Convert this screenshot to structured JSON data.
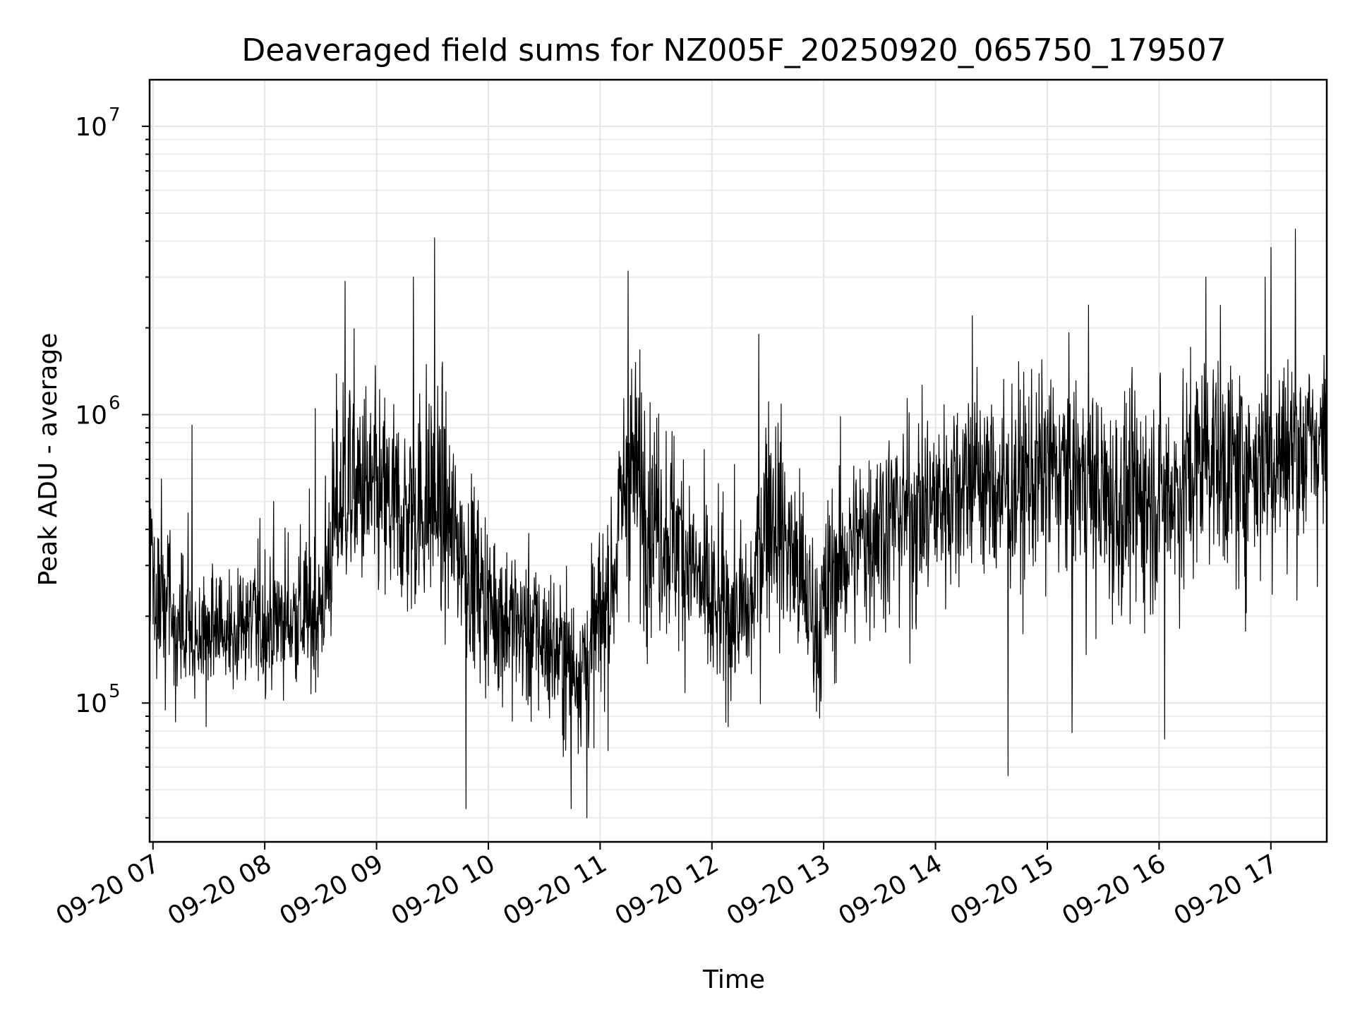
{
  "chart_data": {
    "type": "line",
    "title": "Deaveraged field sums for NZ005F_20250920_065750_179507",
    "xlabel": "Time",
    "ylabel": "Peak ADU - average",
    "yscale": "log",
    "ylim": [
      33000,
      14500000
    ],
    "xlim_hours": [
      6.97,
      17.5
    ],
    "grid": true,
    "legend": "none",
    "line_color": "#000000",
    "x_ticks": [
      {
        "hour": 7,
        "label": "09-20 07"
      },
      {
        "hour": 8,
        "label": "09-20 08"
      },
      {
        "hour": 9,
        "label": "09-20 09"
      },
      {
        "hour": 10,
        "label": "09-20 10"
      },
      {
        "hour": 11,
        "label": "09-20 11"
      },
      {
        "hour": 12,
        "label": "09-20 12"
      },
      {
        "hour": 13,
        "label": "09-20 13"
      },
      {
        "hour": 14,
        "label": "09-20 14"
      },
      {
        "hour": 15,
        "label": "09-20 15"
      },
      {
        "hour": 16,
        "label": "09-20 16"
      },
      {
        "hour": 17,
        "label": "09-20 17"
      }
    ],
    "y_ticks": [
      {
        "value": 100000,
        "base": "10",
        "exp": "5"
      },
      {
        "value": 1000000,
        "base": "10",
        "exp": "6"
      },
      {
        "value": 10000000,
        "base": "10",
        "exp": "7"
      }
    ],
    "series": [
      {
        "name": "Peak ADU - average",
        "x_hours": [
          6.97,
          7.2,
          7.45,
          7.7,
          7.95,
          8.2,
          8.5,
          8.65,
          8.75,
          9.0,
          9.25,
          9.5,
          9.75,
          10.0,
          10.25,
          10.5,
          10.75,
          10.9,
          11.1,
          11.25,
          11.5,
          11.75,
          12.0,
          12.25,
          12.35,
          12.5,
          12.75,
          12.95,
          13.1,
          13.5,
          13.8,
          14.0,
          14.3,
          14.6,
          15.0,
          15.3,
          15.6,
          16.0,
          16.2,
          16.45,
          16.7,
          17.0,
          17.25,
          17.5
        ],
        "y_envelope": [
          {
            "q": 0.02,
            "values": [
              110000,
              80000,
              85000,
              85000,
              90000,
              95000,
              85000,
              150000,
              180000,
              160000,
              140000,
              160000,
              120000,
              80000,
              70000,
              60000,
              55000,
              55000,
              80000,
              140000,
              120000,
              100000,
              75000,
              80000,
              80000,
              130000,
              90000,
              70000,
              90000,
              120000,
              120000,
              140000,
              180000,
              150000,
              160000,
              130000,
              120000,
              140000,
              150000,
              200000,
              160000,
              180000,
              200000,
              230000
            ]
          },
          {
            "q": 0.5,
            "values": [
              250000,
              170000,
              160000,
              180000,
              180000,
              190000,
              200000,
              450000,
              550000,
              500000,
              420000,
              480000,
              350000,
              220000,
              190000,
              170000,
              130000,
              140000,
              250000,
              700000,
              450000,
              350000,
              200000,
              200000,
              200000,
              550000,
              300000,
              170000,
              300000,
              450000,
              480000,
              500000,
              650000,
              550000,
              700000,
              650000,
              500000,
              550000,
              550000,
              800000,
              650000,
              750000,
              800000,
              850000
            ]
          },
          {
            "q": 0.98,
            "values": [
              700000,
              500000,
              480000,
              500000,
              500000,
              550000,
              600000,
              2000000,
              2500000,
              1800000,
              1800000,
              2500000,
              1000000,
              600000,
              450000,
              400000,
              350000,
              450000,
              800000,
              2800000,
              1500000,
              1200000,
              650000,
              600000,
              650000,
              1800000,
              1000000,
              550000,
              900000,
              1200000,
              1300000,
              1500000,
              2000000,
              1700000,
              1800000,
              1700000,
              1600000,
              1800000,
              2000000,
              2800000,
              2000000,
              2200000,
              2500000,
              2000000
            ]
          }
        ],
        "spikes": [
          {
            "hour": 7.35,
            "value": 920000
          },
          {
            "hour": 8.45,
            "value": 1050000
          },
          {
            "hour": 8.72,
            "value": 2900000
          },
          {
            "hour": 9.33,
            "value": 3000000
          },
          {
            "hour": 9.52,
            "value": 4100000
          },
          {
            "hour": 11.25,
            "value": 3150000
          },
          {
            "hour": 12.42,
            "value": 1900000
          },
          {
            "hour": 14.33,
            "value": 2200000
          },
          {
            "hour": 15.37,
            "value": 2400000
          },
          {
            "hour": 16.42,
            "value": 3000000
          },
          {
            "hour": 16.95,
            "value": 3000000
          },
          {
            "hour": 17.0,
            "value": 3800000
          },
          {
            "hour": 17.22,
            "value": 4400000
          },
          {
            "hour": 9.8,
            "value": 43000
          },
          {
            "hour": 10.88,
            "value": 40000
          },
          {
            "hour": 10.74,
            "value": 43000
          },
          {
            "hour": 14.65,
            "value": 56000
          },
          {
            "hour": 15.22,
            "value": 79000
          },
          {
            "hour": 16.05,
            "value": 75000
          }
        ]
      }
    ]
  }
}
